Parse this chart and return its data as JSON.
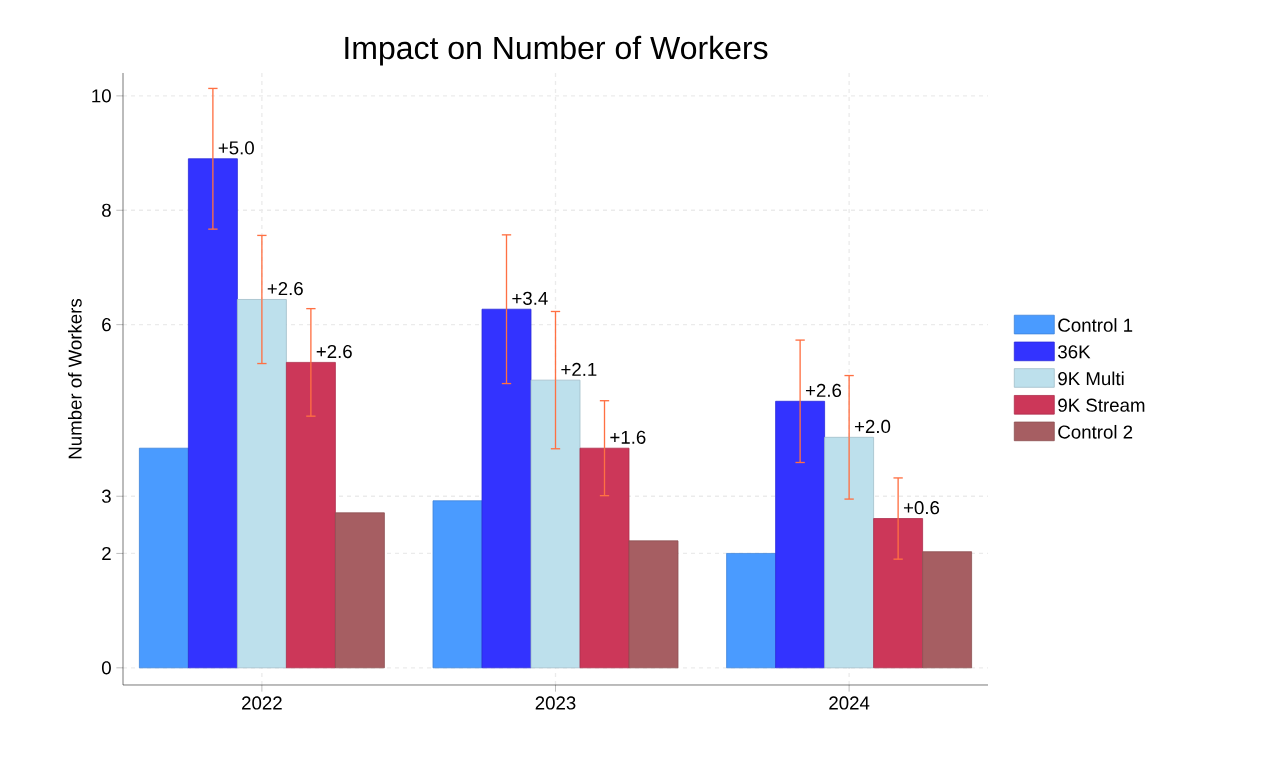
{
  "chart_data": {
    "type": "bar",
    "title": "Impact on Number of Workers",
    "ylabel": "Number of Workers",
    "categories": [
      "2022",
      "2023",
      "2024"
    ],
    "series": [
      {
        "name": "Control 1",
        "color": "#4a9bff",
        "values": [
          3.84,
          2.92,
          2.0
        ]
      },
      {
        "name": "36K",
        "color": "#3333ff",
        "values": [
          8.9,
          6.27,
          4.66
        ],
        "errors": [
          1.23,
          1.3,
          1.07
        ]
      },
      {
        "name": "9K Multi",
        "color": "#bde0ec",
        "values": [
          6.44,
          5.03,
          4.03
        ],
        "errors": [
          1.12,
          1.2,
          1.08
        ]
      },
      {
        "name": "9K Stream",
        "color": "#cc3759",
        "values": [
          5.34,
          3.84,
          2.61
        ],
        "errors": [
          0.94,
          0.83,
          0.71
        ]
      },
      {
        "name": "Control 2",
        "color": "#a65e62",
        "values": [
          2.71,
          2.22,
          2.03
        ]
      }
    ],
    "annotations": [
      "+5.0",
      "+2.6",
      "+2.6",
      "+3.4",
      "+2.1",
      "+1.6",
      "+2.6",
      "+2.0",
      "+0.6"
    ],
    "ylim": [
      -0.3,
      10.4
    ],
    "yticks": [
      0,
      2,
      3,
      6,
      8,
      10
    ],
    "grid": true,
    "legend": "right"
  }
}
